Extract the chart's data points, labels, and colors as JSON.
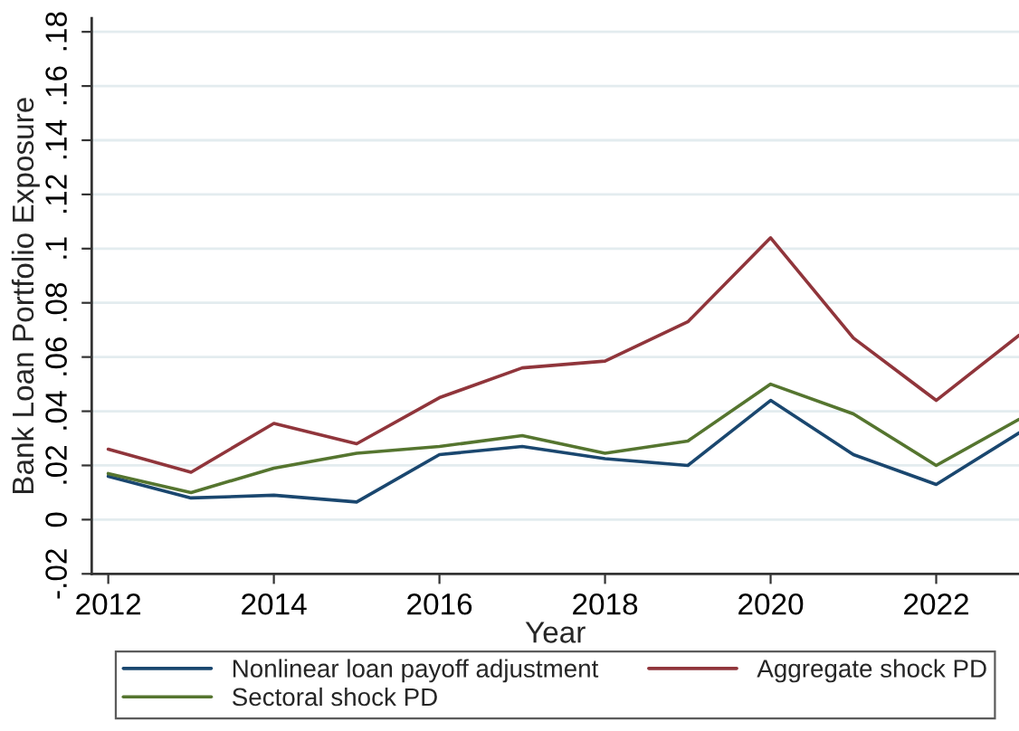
{
  "chart_data": {
    "type": "line",
    "xlabel": "Year",
    "ylabel": "Bank Loan Portfolio Exposure",
    "x": [
      2012,
      2013,
      2014,
      2015,
      2016,
      2017,
      2018,
      2019,
      2020,
      2021,
      2022,
      2023
    ],
    "series": [
      {
        "name": "Nonlinear loan payoff adjustment",
        "color": "#1a476f",
        "values": [
          0.016,
          0.008,
          0.009,
          0.0065,
          0.024,
          0.027,
          0.0225,
          0.02,
          0.044,
          0.024,
          0.013,
          0.032
        ]
      },
      {
        "name": "Aggregate shock PD",
        "color": "#90353b",
        "values": [
          0.026,
          0.0175,
          0.0355,
          0.028,
          0.045,
          0.056,
          0.0585,
          0.073,
          0.104,
          0.067,
          0.044,
          0.068
        ]
      },
      {
        "name": "Sectoral shock PD",
        "color": "#55752f",
        "values": [
          0.017,
          0.01,
          0.019,
          0.0245,
          0.027,
          0.031,
          0.0245,
          0.029,
          0.05,
          0.039,
          0.02,
          0.037
        ]
      }
    ],
    "xlim": [
      2011.8,
      2023
    ],
    "ylim": [
      -0.02,
      0.185
    ],
    "xticks": [
      2012,
      2014,
      2016,
      2018,
      2020,
      2022
    ],
    "yticks": [
      {
        "value": -0.02,
        "label": "-.02"
      },
      0,
      {
        "value": 0.02,
        "label": ".02"
      },
      {
        "value": 0.04,
        "label": ".04"
      },
      {
        "value": 0.06,
        "label": ".06"
      },
      {
        "value": 0.08,
        "label": ".08"
      },
      {
        "value": 0.1,
        "label": ".1"
      },
      {
        "value": 0.12,
        "label": ".12"
      },
      {
        "value": 0.14,
        "label": ".14"
      },
      {
        "value": 0.16,
        "label": ".16"
      },
      {
        "value": 0.18,
        "label": ".18"
      }
    ],
    "grid": "y",
    "legend": "bottom",
    "marker": "none",
    "line_style": "solid"
  }
}
